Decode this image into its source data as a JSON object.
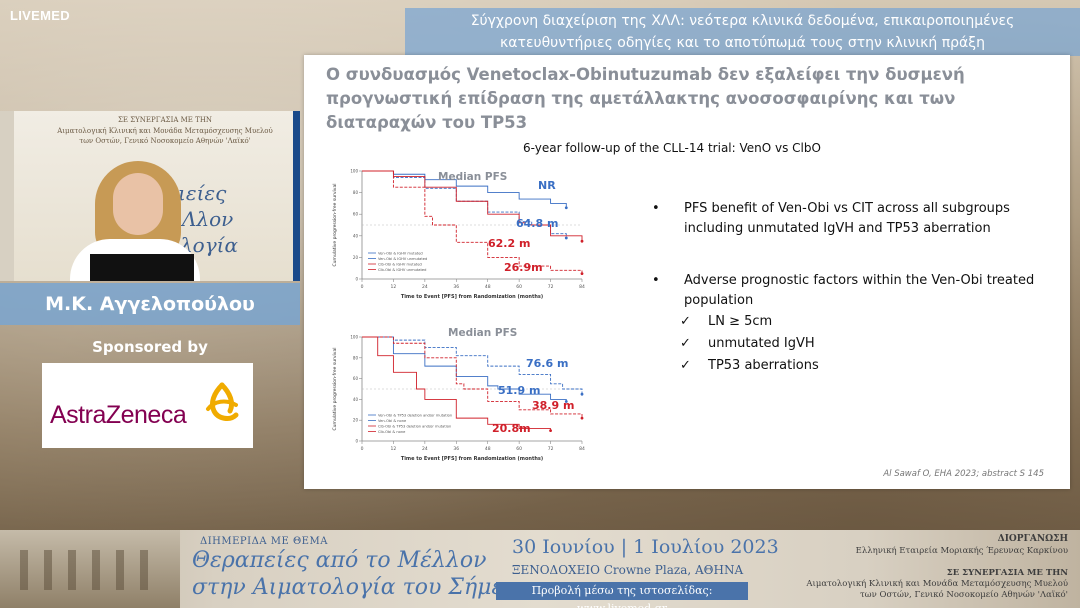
{
  "brand": "LIVEMED",
  "header": {
    "title_line1": "Σύγχρονη διαχείριση της ΧΛΛ: νεότερα κλινικά δεδομένα, επικαιροποιημένες",
    "title_line2": "κατευθυντήριες οδηγίες και το αποτύπωμά τους στην κλινική πράξη"
  },
  "speaker": {
    "name": "Μ.Κ. Αγγελοπούλου",
    "stage_line1": "ΣΕ ΣΥΝΕΡΓΑΣΙΑ ΜΕ ΤΗΝ",
    "stage_line2": "Αιματολογική Κλινική και Μονάδα Μεταμόσχευσης Μυελού",
    "stage_line3": "των Οστών, Γενικό Νοσοκομείο Αθηνών 'Λαϊκό'",
    "stage_big1": "ιείες",
    "stage_big2": "Λλον",
    "stage_big3": "λογία"
  },
  "sponsor": {
    "label": "Sponsored by",
    "logo_text": "AstraZeneca"
  },
  "slide": {
    "title": "Ο συνδυασμός Venetoclax-Obinutuzumab δεν εξαλείφει την δυσμενή προγνωστική επίδραση της αμετάλλακτης ανοσοσφαιρίνης και των διαταραχών του TP53",
    "subtitle": "6-year follow-up of the CLL-14 trial: VenO vs ClbO",
    "bullets": [
      {
        "text": "PFS benefit of Ven-Obi vs CIT across all subgroups including unmutated IgVH and TP53 aberration"
      },
      {
        "text": "Adverse prognostic factors within the Ven-Obi treated population"
      }
    ],
    "checks": [
      {
        "mark": "✓",
        "text": "LN ≥ 5cm"
      },
      {
        "mark": "✓",
        "text": "unmutated IgVH"
      },
      {
        "mark": "✓",
        "text": "TP53 aberrations"
      }
    ],
    "bullet_mark": "•",
    "citation": "Al Sawaf O, EHA 2023; abstract S 145"
  },
  "chart_data": [
    {
      "type": "line",
      "title": "Median PFS",
      "xlabel": "Time to Event [PFS] from Randomization (months)",
      "ylabel": "Cumulative progression-free survival",
      "xlim": [
        0,
        84
      ],
      "ylim": [
        0,
        100
      ],
      "x_ticks": [
        0,
        12,
        24,
        36,
        48,
        60,
        72,
        84
      ],
      "series": [
        {
          "name": "Ven-Obi & IGHV mutated",
          "label": "NR",
          "color": "#3a6fc4",
          "x": [
            0,
            12,
            24,
            36,
            48,
            60,
            72,
            78
          ],
          "y": [
            100,
            97,
            92,
            86,
            80,
            74,
            70,
            66
          ]
        },
        {
          "name": "Ven-Obi & IGHV unmutated",
          "label": "64.8 m",
          "color": "#3a6fc4",
          "x": [
            0,
            12,
            24,
            36,
            48,
            60,
            64.8,
            72,
            78
          ],
          "y": [
            100,
            94,
            84,
            72,
            62,
            53,
            50,
            42,
            38
          ]
        },
        {
          "name": "Clb-Obi & IGHV mutated",
          "label": "62.2 m",
          "color": "#d0202a",
          "x": [
            0,
            12,
            24,
            36,
            48,
            60,
            62.2,
            72,
            84
          ],
          "y": [
            100,
            95,
            85,
            72,
            60,
            52,
            50,
            40,
            35
          ]
        },
        {
          "name": "Clb-Obi & IGHV unmutated",
          "label": "26.9m",
          "color": "#d0202a",
          "x": [
            0,
            12,
            24,
            26.9,
            36,
            48,
            60,
            72,
            84
          ],
          "y": [
            100,
            85,
            58,
            50,
            34,
            20,
            12,
            8,
            5
          ]
        }
      ]
    },
    {
      "type": "line",
      "title": "Median PFS",
      "xlabel": "Time to Event [PFS] from Randomization (months)",
      "ylabel": "Cumulative progression-free survival",
      "xlim": [
        0,
        84
      ],
      "ylim": [
        0,
        100
      ],
      "x_ticks": [
        0,
        12,
        24,
        36,
        48,
        60,
        72,
        84
      ],
      "series": [
        {
          "name": "Ven-Obi & TP53 deletion and/or mutation",
          "label": "51.9 m",
          "color": "#3a6fc4",
          "x": [
            0,
            12,
            24,
            36,
            48,
            51.9,
            60,
            72,
            78
          ],
          "y": [
            100,
            84,
            72,
            62,
            53,
            50,
            45,
            40,
            38
          ]
        },
        {
          "name": "Ven-Obi & none",
          "label": "76.6 m",
          "color": "#3a6fc4",
          "x": [
            0,
            12,
            24,
            36,
            48,
            60,
            72,
            76.6,
            84
          ],
          "y": [
            100,
            97,
            90,
            82,
            72,
            64,
            55,
            50,
            45
          ]
        },
        {
          "name": "Clb-Obi & TP53 deletion and/or mutation",
          "label": "20.8m",
          "color": "#d0202a",
          "x": [
            0,
            6,
            12,
            20.8,
            24,
            36,
            48,
            60,
            72
          ],
          "y": [
            100,
            82,
            66,
            50,
            40,
            22,
            16,
            12,
            10
          ]
        },
        {
          "name": "Clb-Obi & none",
          "label": "38.9 m",
          "color": "#d0202a",
          "x": [
            0,
            12,
            24,
            36,
            38.9,
            48,
            60,
            72,
            84
          ],
          "y": [
            100,
            94,
            80,
            55,
            50,
            38,
            30,
            26,
            22
          ]
        }
      ]
    }
  ],
  "banner": {
    "line1": "ΔΙΗΜΕΡΙΔΑ ΜΕ ΘΕΜΑ",
    "line2": "Θεραπείες από το Μέλλον",
    "line3": "στην Αιματολογία του Σήμερα",
    "date": "30 Ιουνίου | 1 Ιουλίου 2023",
    "venue": "ΞΕΝΟΔΟΧΕΙΟ Crowne Plaza, ΑΘΗΝΑ",
    "stream": "Προβολή μέσω της ιστοσελίδας: www.livemed.gr",
    "org_label": "ΔΙΟΡΓΑΝΩΣΗ",
    "org": "Ελληνική Εταιρεία Μοριακής Έρευνας Καρκίνου",
    "collab_label": "ΣΕ ΣΥΝΕΡΓΑΣΙΑ ΜΕ ΤΗΝ",
    "collab1": "Αιματολογική Κλινική και Μονάδα Μεταμόσχευσης Μυελού",
    "collab2": "των Οστών, Γενικό Νοσοκομείο Αθηνών 'Λαϊκό'"
  }
}
